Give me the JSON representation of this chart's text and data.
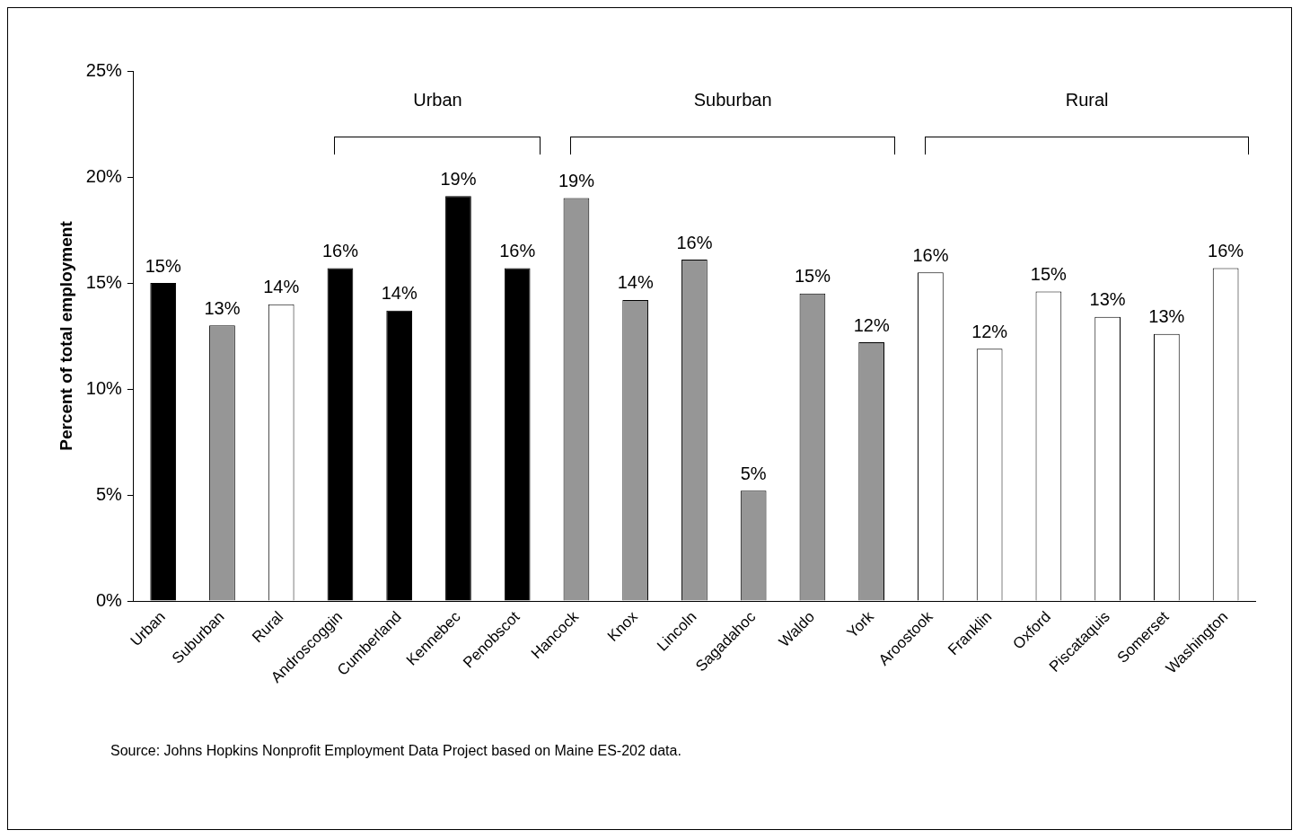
{
  "chart_data": {
    "type": "bar",
    "ylabel": "Percent of total employment",
    "categories": [
      "Urban",
      "Suburban",
      "Rural",
      "Androscoggin",
      "Cumberland",
      "Kennebec",
      "Penobscot",
      "Hancock",
      "Knox",
      "Lincoln",
      "Sagadahoc",
      "Waldo",
      "York",
      "Aroostook",
      "Franklin",
      "Oxford",
      "Piscataquis",
      "Somerset",
      "Washington"
    ],
    "values": [
      15.0,
      13.0,
      14.0,
      15.7,
      13.7,
      19.1,
      15.7,
      19.0,
      14.2,
      16.1,
      5.2,
      14.5,
      12.2,
      15.5,
      11.9,
      14.6,
      13.4,
      12.6,
      15.7
    ],
    "value_labels": [
      "15%",
      "13%",
      "14%",
      "16%",
      "14%",
      "19%",
      "16%",
      "19%",
      "14%",
      "16%",
      "5%",
      "15%",
      "12%",
      "16%",
      "12%",
      "15%",
      "13%",
      "13%",
      "16%"
    ],
    "colors": [
      "#000000",
      "#969696",
      "#ffffff",
      "#000000",
      "#000000",
      "#000000",
      "#000000",
      "#969696",
      "#969696",
      "#969696",
      "#969696",
      "#969696",
      "#969696",
      "#ffffff",
      "#ffffff",
      "#ffffff",
      "#ffffff",
      "#ffffff",
      "#ffffff"
    ],
    "ylim": [
      0,
      25
    ],
    "yticks": [
      {
        "value": 0,
        "label": "0%"
      },
      {
        "value": 5,
        "label": "5%"
      },
      {
        "value": 10,
        "label": "10%"
      },
      {
        "value": 15,
        "label": "15%"
      },
      {
        "value": 20,
        "label": "20%"
      },
      {
        "value": 25,
        "label": "25%"
      }
    ],
    "grid": false,
    "legend": false,
    "annotations": [
      "Urban",
      "Suburban",
      "Rural",
      "Source: Johns Hopkins Nonprofit Employment Data Project based on Maine ES-202 data."
    ]
  }
}
